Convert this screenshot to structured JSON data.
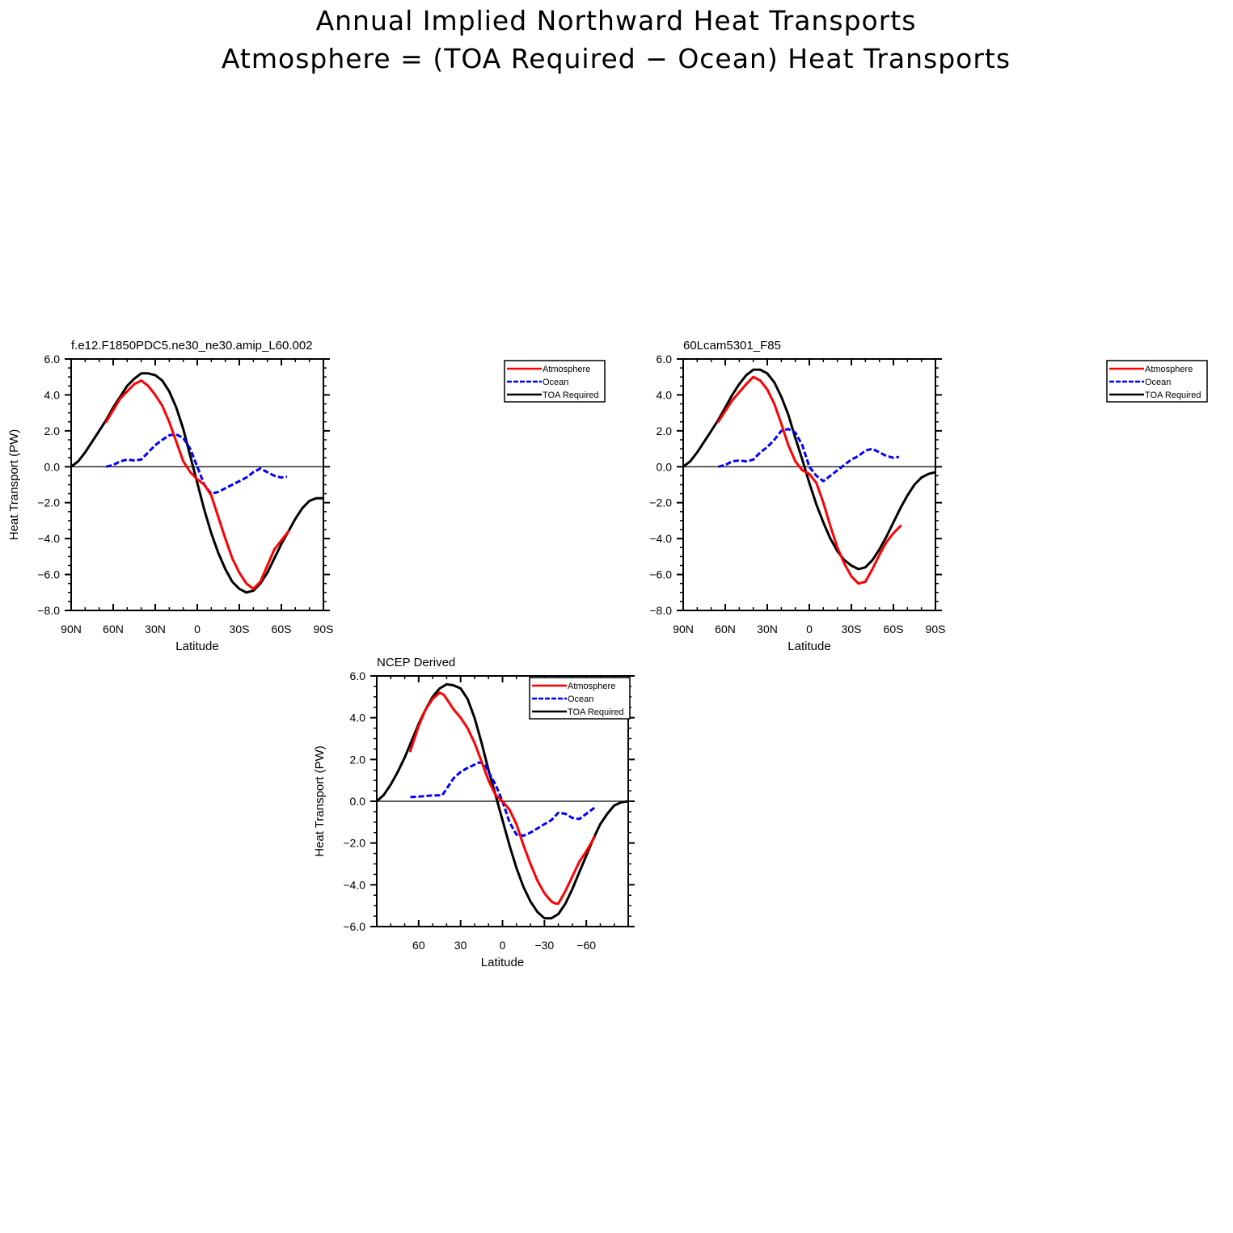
{
  "figure": {
    "title_line1": "Annual Implied Northward Heat Transports",
    "title_line2": "Atmosphere = (TOA Required − Ocean) Heat Transports"
  },
  "colors": {
    "atmosphere": "#ff0000",
    "ocean": "#0000ff",
    "toa": "#000000",
    "zero_line": "#000000"
  },
  "chart_data": [
    {
      "type": "line",
      "title": "f.e12.F1850PDC5.ne30_ne30.amip_L60.002",
      "xlabel": "Latitude",
      "ylabel": "Heat Transport (PW)",
      "xlim": [
        90,
        -90
      ],
      "ylim": [
        -8,
        6
      ],
      "x_ticks": [
        90,
        60,
        30,
        0,
        -30,
        -60,
        -90
      ],
      "x_tick_labels": [
        "90N",
        "60N",
        "30N",
        "0",
        "30S",
        "60S",
        "90S"
      ],
      "y_ticks": [
        -8,
        -6,
        -4,
        -2,
        0,
        2,
        4,
        6
      ],
      "y_tick_labels": [
        "−8.0",
        "−6.0",
        "−4.0",
        "−2.0",
        "0.0",
        "2.0",
        "4.0",
        "6.0"
      ],
      "legend_position": "right",
      "series": [
        {
          "name": "Atmosphere",
          "color": "#ff0000",
          "dash": "solid",
          "x": [
            65,
            55,
            45,
            40,
            35,
            30,
            25,
            20,
            15,
            10,
            5,
            0,
            -5,
            -10,
            -15,
            -20,
            -25,
            -30,
            -35,
            -40,
            -45,
            -50,
            -55,
            -60,
            -65
          ],
          "y": [
            2.5,
            3.8,
            4.6,
            4.8,
            4.5,
            4.0,
            3.4,
            2.5,
            1.4,
            0.3,
            -0.3,
            -0.7,
            -1.0,
            -1.6,
            -2.8,
            -4.0,
            -5.1,
            -5.9,
            -6.5,
            -6.8,
            -6.4,
            -5.5,
            -4.6,
            -4.1,
            -3.6
          ]
        },
        {
          "name": "Ocean",
          "color": "#0000ff",
          "dash": "dashed",
          "x": [
            65,
            60,
            55,
            50,
            45,
            40,
            35,
            30,
            25,
            20,
            15,
            10,
            5,
            0,
            -5,
            -10,
            -15,
            -20,
            -25,
            -30,
            -35,
            -40,
            -45,
            -50,
            -55,
            -60,
            -64
          ],
          "y": [
            0.0,
            0.1,
            0.3,
            0.4,
            0.35,
            0.4,
            0.8,
            1.2,
            1.5,
            1.75,
            1.8,
            1.6,
            1.0,
            0.0,
            -1.0,
            -1.5,
            -1.4,
            -1.2,
            -1.0,
            -0.8,
            -0.6,
            -0.3,
            -0.1,
            -0.3,
            -0.5,
            -0.6,
            -0.55
          ]
        },
        {
          "name": "TOA Required",
          "color": "#000000",
          "dash": "solid",
          "x": [
            90,
            85,
            80,
            75,
            70,
            65,
            60,
            55,
            50,
            45,
            40,
            35,
            30,
            25,
            20,
            15,
            10,
            5,
            0,
            -5,
            -10,
            -15,
            -20,
            -25,
            -30,
            -35,
            -40,
            -45,
            -50,
            -55,
            -60,
            -65,
            -70,
            -75,
            -80,
            -85,
            -90
          ],
          "y": [
            0.0,
            0.3,
            0.8,
            1.4,
            2.0,
            2.6,
            3.3,
            3.9,
            4.5,
            4.9,
            5.2,
            5.2,
            5.1,
            4.8,
            4.2,
            3.3,
            2.1,
            0.6,
            -0.9,
            -2.4,
            -3.7,
            -4.8,
            -5.7,
            -6.4,
            -6.8,
            -7.0,
            -6.9,
            -6.5,
            -5.9,
            -5.1,
            -4.3,
            -3.6,
            -2.9,
            -2.3,
            -1.9,
            -1.75,
            -1.75
          ]
        }
      ]
    },
    {
      "type": "line",
      "title": "60Lcam5301_F85",
      "xlabel": "Latitude",
      "ylabel": "",
      "xlim": [
        90,
        -90
      ],
      "ylim": [
        -8,
        6
      ],
      "x_ticks": [
        90,
        60,
        30,
        0,
        -30,
        -60,
        -90
      ],
      "x_tick_labels": [
        "90N",
        "60N",
        "30N",
        "0",
        "30S",
        "60S",
        "90S"
      ],
      "y_ticks": [
        -8,
        -6,
        -4,
        -2,
        0,
        2,
        4,
        6
      ],
      "y_tick_labels": [
        "−8.0",
        "−6.0",
        "−4.0",
        "−2.0",
        "0.0",
        "2.0",
        "4.0",
        "6.0"
      ],
      "legend_position": "right",
      "series": [
        {
          "name": "Atmosphere",
          "color": "#ff0000",
          "dash": "solid",
          "x": [
            65,
            55,
            45,
            40,
            35,
            30,
            25,
            20,
            15,
            10,
            5,
            0,
            -5,
            -10,
            -15,
            -20,
            -25,
            -30,
            -35,
            -40,
            -45,
            -50,
            -55,
            -60,
            -65
          ],
          "y": [
            2.5,
            3.7,
            4.6,
            5.0,
            4.8,
            4.3,
            3.5,
            2.4,
            1.2,
            0.3,
            -0.2,
            -0.4,
            -0.9,
            -2.0,
            -3.3,
            -4.5,
            -5.4,
            -6.1,
            -6.5,
            -6.4,
            -5.7,
            -4.9,
            -4.2,
            -3.7,
            -3.3
          ]
        },
        {
          "name": "Ocean",
          "color": "#0000ff",
          "dash": "dashed",
          "x": [
            65,
            60,
            55,
            50,
            45,
            40,
            35,
            30,
            25,
            20,
            15,
            10,
            5,
            0,
            -5,
            -10,
            -15,
            -20,
            -25,
            -30,
            -35,
            -40,
            -45,
            -50,
            -55,
            -60,
            -64
          ],
          "y": [
            0.0,
            0.1,
            0.3,
            0.35,
            0.3,
            0.4,
            0.8,
            1.1,
            1.5,
            2.0,
            2.1,
            1.9,
            1.2,
            0.0,
            -0.5,
            -0.8,
            -0.5,
            -0.2,
            0.1,
            0.4,
            0.6,
            0.9,
            1.0,
            0.8,
            0.6,
            0.5,
            0.55
          ]
        },
        {
          "name": "TOA Required",
          "color": "#000000",
          "dash": "solid",
          "x": [
            90,
            85,
            80,
            75,
            70,
            65,
            60,
            55,
            50,
            45,
            40,
            35,
            30,
            25,
            20,
            15,
            10,
            5,
            0,
            -5,
            -10,
            -15,
            -20,
            -25,
            -30,
            -35,
            -40,
            -45,
            -50,
            -55,
            -60,
            -65,
            -70,
            -75,
            -80,
            -85,
            -90
          ],
          "y": [
            0.0,
            0.3,
            0.8,
            1.4,
            2.0,
            2.6,
            3.3,
            4.0,
            4.6,
            5.1,
            5.4,
            5.4,
            5.2,
            4.7,
            3.9,
            2.9,
            1.6,
            0.4,
            -0.9,
            -2.1,
            -3.1,
            -4.0,
            -4.7,
            -5.2,
            -5.5,
            -5.7,
            -5.6,
            -5.2,
            -4.6,
            -3.9,
            -3.1,
            -2.3,
            -1.6,
            -1.0,
            -0.6,
            -0.4,
            -0.3
          ]
        }
      ]
    },
    {
      "type": "line",
      "title": "NCEP Derived",
      "xlabel": "Latitude",
      "ylabel": "Heat Transport (PW)",
      "xlim": [
        90,
        -90
      ],
      "ylim": [
        -6,
        6
      ],
      "x_ticks": [
        60,
        30,
        0,
        -30,
        -60
      ],
      "x_tick_labels": [
        "60",
        "30",
        "0",
        "−30",
        "−60"
      ],
      "y_ticks": [
        -6,
        -4,
        -2,
        0,
        2,
        4,
        6
      ],
      "y_tick_labels": [
        "−6.0",
        "−4.0",
        "−2.0",
        "0.0",
        "2.0",
        "4.0",
        "6.0"
      ],
      "legend_position": "top-right",
      "series": [
        {
          "name": "Atmosphere",
          "color": "#ff0000",
          "dash": "solid",
          "x": [
            66,
            60,
            55,
            50,
            45,
            42,
            40,
            35,
            30,
            25,
            20,
            15,
            10,
            5,
            0,
            -5,
            -10,
            -15,
            -20,
            -25,
            -30,
            -35,
            -38,
            -40,
            -45,
            -50,
            -55,
            -60,
            -66
          ],
          "y": [
            2.4,
            3.6,
            4.4,
            4.9,
            5.2,
            5.1,
            4.9,
            4.4,
            4.0,
            3.5,
            2.8,
            1.9,
            1.0,
            0.3,
            0.0,
            -0.4,
            -1.1,
            -2.1,
            -3.0,
            -3.8,
            -4.4,
            -4.8,
            -4.9,
            -4.9,
            -4.3,
            -3.6,
            -2.9,
            -2.4,
            -1.7
          ]
        },
        {
          "name": "Ocean",
          "color": "#0000ff",
          "dash": "dashed",
          "x": [
            66,
            60,
            55,
            50,
            46,
            43,
            40,
            35,
            30,
            25,
            20,
            17,
            15,
            12,
            10,
            5,
            0,
            -5,
            -10,
            -15,
            -20,
            -25,
            -30,
            -35,
            -40,
            -45,
            -50,
            -55,
            -60,
            -66
          ],
          "y": [
            0.2,
            0.22,
            0.25,
            0.28,
            0.28,
            0.3,
            0.6,
            1.1,
            1.4,
            1.6,
            1.75,
            1.85,
            1.85,
            1.7,
            1.4,
            0.8,
            0.0,
            -1.0,
            -1.6,
            -1.65,
            -1.5,
            -1.3,
            -1.1,
            -0.9,
            -0.55,
            -0.6,
            -0.8,
            -0.85,
            -0.6,
            -0.3
          ]
        },
        {
          "name": "TOA Required",
          "color": "#000000",
          "dash": "solid",
          "x": [
            90,
            85,
            80,
            75,
            70,
            65,
            60,
            55,
            50,
            45,
            40,
            35,
            30,
            25,
            20,
            15,
            10,
            5,
            0,
            -5,
            -10,
            -15,
            -20,
            -25,
            -30,
            -35,
            -40,
            -45,
            -50,
            -55,
            -60,
            -65,
            -70,
            -75,
            -80,
            -85,
            -90
          ],
          "y": [
            0.0,
            0.3,
            0.8,
            1.4,
            2.1,
            2.9,
            3.7,
            4.4,
            5.0,
            5.4,
            5.6,
            5.55,
            5.4,
            4.9,
            4.0,
            2.8,
            1.5,
            0.3,
            -0.9,
            -2.1,
            -3.2,
            -4.1,
            -4.8,
            -5.3,
            -5.6,
            -5.6,
            -5.4,
            -4.9,
            -4.2,
            -3.4,
            -2.6,
            -1.8,
            -1.1,
            -0.6,
            -0.2,
            -0.05,
            0.0
          ]
        }
      ]
    }
  ]
}
